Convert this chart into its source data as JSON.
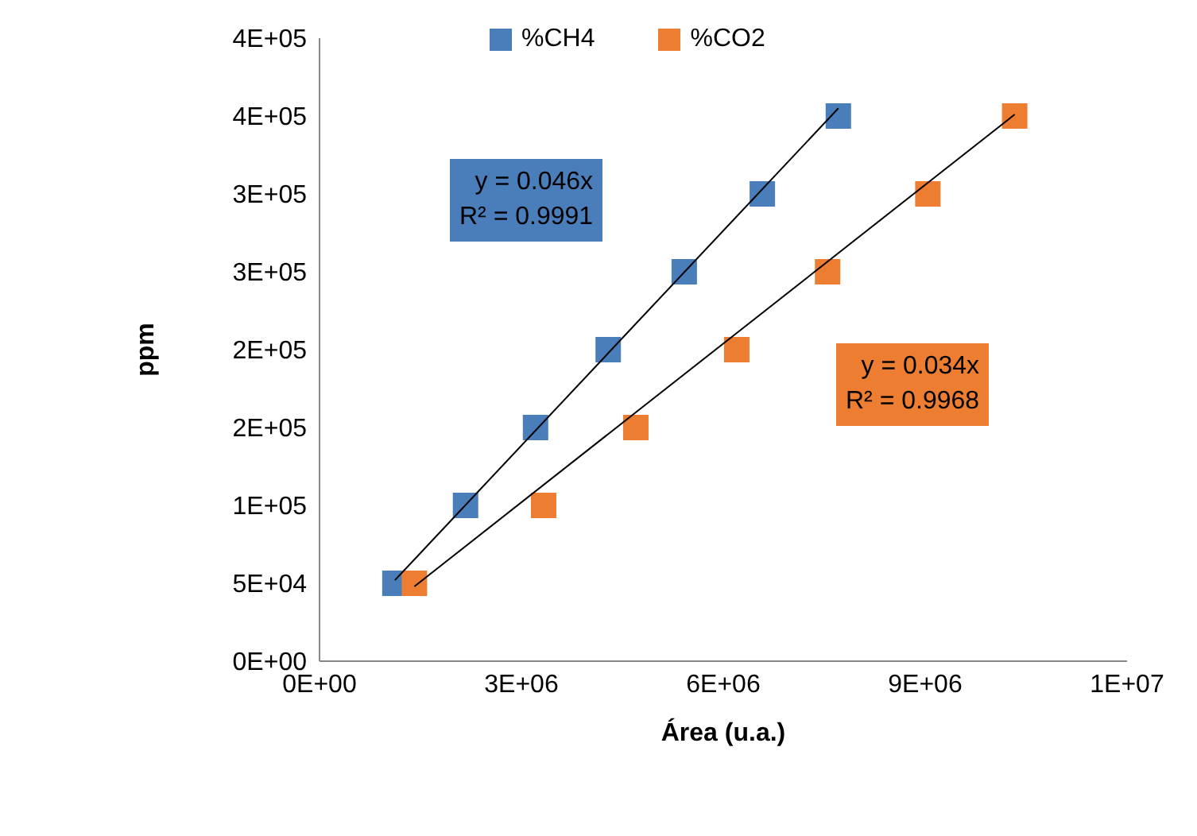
{
  "chart_data": {
    "type": "scatter",
    "xlabel": "Área (u.a.)",
    "ylabel": "ppm",
    "legend": "top",
    "xlim": [
      0,
      12000000
    ],
    "xticks": [
      {
        "value": 0,
        "label": "0E+00"
      },
      {
        "value": 3000000,
        "label": "3E+06"
      },
      {
        "value": 6000000,
        "label": "6E+06"
      },
      {
        "value": 9000000,
        "label": "9E+06"
      },
      {
        "value": 12000000,
        "label": "1E+07"
      }
    ],
    "ylim": [
      0,
      400000
    ],
    "yticks": [
      {
        "value": 0,
        "label": "0E+00"
      },
      {
        "value": 50000,
        "label": "5E+04"
      },
      {
        "value": 100000,
        "label": "1E+05"
      },
      {
        "value": 150000,
        "label": "2E+05"
      },
      {
        "value": 200000,
        "label": "2E+05"
      },
      {
        "value": 250000,
        "label": "3E+05"
      },
      {
        "value": 300000,
        "label": "3E+05"
      },
      {
        "value": 350000,
        "label": "4E+05"
      },
      {
        "value": 400000,
        "label": "4E+05"
      }
    ],
    "series": [
      {
        "name": "%CH4",
        "marker": "square",
        "color": "#4a7ebb",
        "x": [
          1120000,
          2170000,
          3210000,
          4290000,
          5420000,
          6580000,
          7710000
        ],
        "values": [
          50000,
          100000,
          150000,
          200000,
          250000,
          300000,
          350000
        ]
      },
      {
        "name": "%CO2",
        "marker": "square",
        "color": "#ed7d31",
        "x": [
          1410000,
          3330000,
          4700000,
          6200000,
          7550000,
          9040000,
          10330000
        ],
        "values": [
          50000,
          100000,
          150000,
          200000,
          250000,
          300000,
          350000
        ]
      },
      {
        "type": "line",
        "marker": "none",
        "color": "#000000",
        "x": [
          1120000,
          7710000
        ],
        "values": [
          52000,
          355000
        ]
      },
      {
        "type": "line",
        "marker": "none",
        "color": "#000000",
        "x": [
          1410000,
          10330000
        ],
        "values": [
          48000,
          351000
        ]
      }
    ],
    "annotations": [
      "y = 0.046x",
      "R² = 0.9991",
      "y = 0.034x",
      "R² = 0.9968"
    ]
  }
}
